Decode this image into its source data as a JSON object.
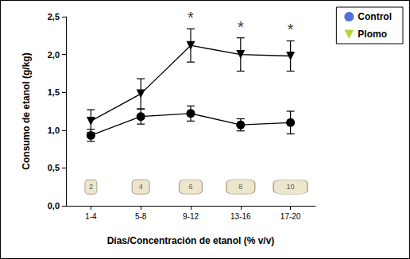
{
  "chart_data": {
    "type": "line",
    "x_label": "Días/Concentración de etanol (% v/v)",
    "y_label": "Consumo de etanol (g/kg)",
    "categories": [
      "1-4",
      "5-8",
      "9-12",
      "13-16",
      "17-20"
    ],
    "series": [
      {
        "name": "Control",
        "color": "#000000",
        "marker": "circle",
        "values": [
          0.93,
          1.18,
          1.22,
          1.07,
          1.1
        ],
        "errors": [
          0.08,
          0.1,
          0.1,
          0.08,
          0.15
        ]
      },
      {
        "name": "Plomo",
        "color": "#000000",
        "marker": "triangle-down",
        "values": [
          1.12,
          1.48,
          2.12,
          2.0,
          1.98
        ],
        "errors": [
          0.15,
          0.2,
          0.22,
          0.22,
          0.2
        ]
      }
    ],
    "significance": [
      null,
      null,
      "*",
      "*",
      "*"
    ],
    "concentrations": [
      2,
      4,
      6,
      8,
      10
    ],
    "ylim": [
      0,
      2.5
    ],
    "yticks": [
      {
        "value": 0,
        "label": "0,0"
      },
      {
        "value": 0.5,
        "label": "0,5"
      },
      {
        "value": 1,
        "label": "1,0"
      },
      {
        "value": 1.5,
        "label": "1,5"
      },
      {
        "value": 2,
        "label": "2,0"
      },
      {
        "value": 2.5,
        "label": "2,5"
      }
    ],
    "grid": false,
    "legend": "top-right"
  }
}
